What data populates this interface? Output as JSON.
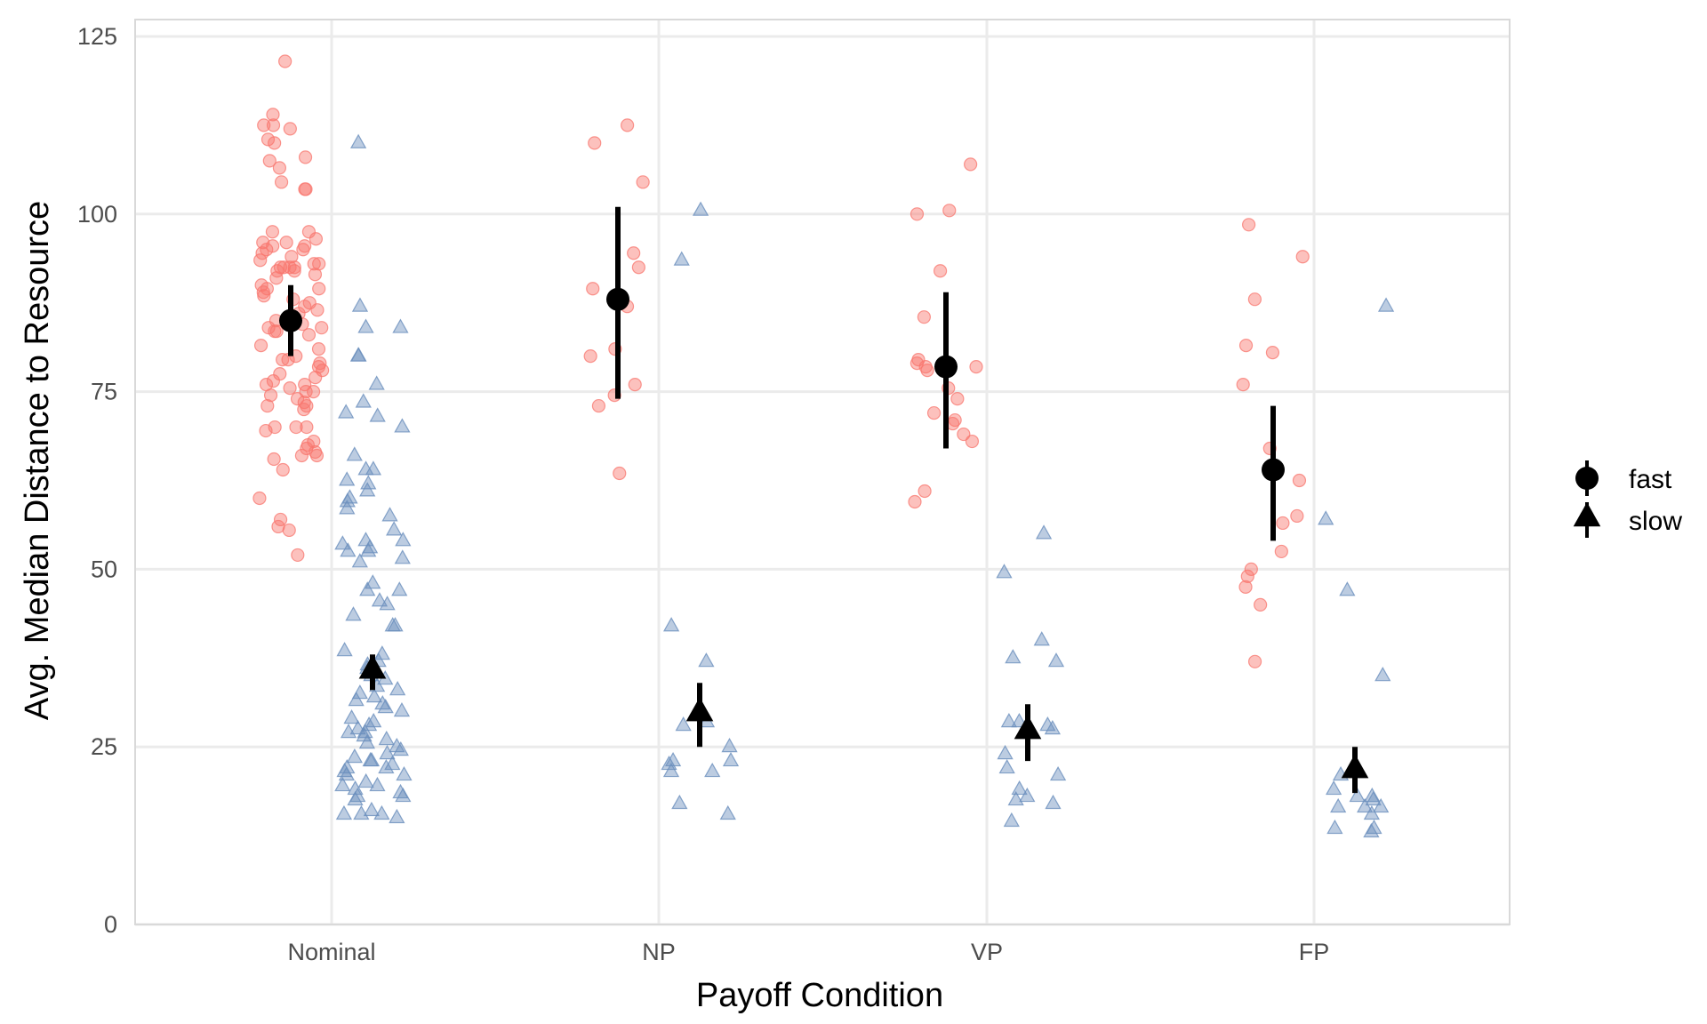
{
  "chart_data": {
    "type": "scatter",
    "title": "",
    "xlabel": "Payoff Condition",
    "ylabel": "Avg. Median Distance to Resource",
    "categories": [
      "Nominal",
      "NP",
      "VP",
      "FP"
    ],
    "ylim": [
      0,
      127
    ],
    "yticks": [
      0,
      25,
      50,
      75,
      100,
      125
    ],
    "grid": true,
    "legend_position": "right",
    "colors": {
      "fast": "#f8766d",
      "slow": "#6a8fbd",
      "summary": "#000000",
      "grid": "#ebebeb"
    },
    "series": [
      {
        "name": "fast",
        "marker": "circle",
        "raw_points": [
          {
            "category": "Nominal",
            "values": [
              121.5,
              114,
              112.5,
              112.5,
              112,
              110.5,
              110,
              108,
              107.5,
              106.5,
              104.5,
              103.5,
              103.5,
              97.5,
              97.5,
              96.5,
              96,
              96,
              95.5,
              95.5,
              95,
              95,
              94.5,
              94,
              93.5,
              93,
              93,
              92.5,
              92.5,
              92.5,
              92.5,
              92,
              92,
              91.5,
              91,
              90,
              89.5,
              89.5,
              89,
              88.5,
              88,
              87.5,
              87,
              86.5,
              86,
              85,
              84.5,
              84,
              84,
              83.5,
              83.5,
              83,
              81.5,
              81,
              80,
              79.5,
              79.5,
              79,
              78.5,
              78,
              77.5,
              77,
              76.5,
              76,
              76,
              75.5,
              75,
              75,
              74.5,
              74,
              73.5,
              73,
              73,
              72.5,
              70,
              70,
              70,
              69.5,
              68,
              67.5,
              67,
              66.5,
              66,
              66,
              65.5,
              64,
              60,
              57,
              56,
              55.5,
              52
            ]
          },
          {
            "category": "NP",
            "values": [
              112.5,
              110,
              104.5,
              94.5,
              92.5,
              89.5,
              87,
              81,
              80,
              76,
              74.5,
              73,
              63.5
            ]
          },
          {
            "category": "VP",
            "values": [
              107,
              100,
              100.5,
              92,
              85.5,
              79.5,
              79,
              78.5,
              78.5,
              78,
              75.5,
              74,
              72,
              71,
              70.5,
              69,
              68,
              61,
              59.5
            ]
          },
          {
            "category": "FP",
            "values": [
              98.5,
              94,
              88,
              81.5,
              80.5,
              76,
              67,
              62.5,
              57.5,
              56.5,
              52.5,
              50,
              49,
              47.5,
              45,
              37
            ]
          }
        ],
        "summary": [
          {
            "category": "Nominal",
            "mean": 85,
            "ci_low": 80,
            "ci_high": 90
          },
          {
            "category": "NP",
            "mean": 88,
            "ci_low": 74,
            "ci_high": 101
          },
          {
            "category": "VP",
            "mean": 78.5,
            "ci_low": 67,
            "ci_high": 89
          },
          {
            "category": "FP",
            "mean": 64,
            "ci_low": 54,
            "ci_high": 73
          }
        ]
      },
      {
        "name": "slow",
        "marker": "triangle",
        "raw_points": [
          {
            "category": "Nominal",
            "values": [
              110,
              87,
              84,
              84,
              80,
              80,
              76,
              73.5,
              72,
              71.5,
              70,
              66,
              64,
              64,
              62.5,
              62,
              61,
              60,
              59.5,
              58.5,
              57.5,
              55.5,
              54,
              54,
              53.5,
              53,
              52.5,
              52.5,
              51.5,
              51,
              48,
              47,
              47,
              45.5,
              45,
              43.5,
              42,
              42,
              38.5,
              38,
              37,
              36.5,
              36,
              35,
              34.5,
              33.5,
              33,
              32.5,
              32,
              31.5,
              31,
              30.5,
              30,
              29,
              28.5,
              28,
              27.5,
              27,
              27,
              26.5,
              26,
              25.5,
              25,
              24.5,
              24,
              23.5,
              23,
              23,
              22.5,
              22,
              22,
              21.5,
              21,
              21,
              20,
              19.5,
              19.5,
              19,
              18.5,
              18,
              18,
              17.5,
              16,
              15.5,
              15.5,
              15.5,
              15
            ]
          },
          {
            "category": "NP",
            "values": [
              100.5,
              93.5,
              42,
              37,
              28.5,
              28,
              25,
              23,
              23,
              22.5,
              21.5,
              21.5,
              17,
              15.5
            ]
          },
          {
            "category": "VP",
            "values": [
              55,
              49.5,
              40,
              37.5,
              37,
              28.5,
              28.5,
              28,
              27.5,
              27,
              24,
              22,
              21,
              19,
              18,
              17.5,
              17,
              14.5
            ]
          },
          {
            "category": "FP",
            "values": [
              87,
              57,
              47,
              35,
              21,
              19,
              18,
              18,
              17.5,
              16.5,
              16.5,
              16.5,
              15.5,
              13.5,
              13.5,
              13
            ]
          }
        ],
        "summary": [
          {
            "category": "Nominal",
            "mean": 35.5,
            "ci_low": 33,
            "ci_high": 38
          },
          {
            "category": "NP",
            "mean": 29.5,
            "ci_low": 25,
            "ci_high": 34
          },
          {
            "category": "VP",
            "mean": 27,
            "ci_low": 23,
            "ci_high": 31
          },
          {
            "category": "FP",
            "mean": 21.5,
            "ci_low": 18.5,
            "ci_high": 25
          }
        ]
      }
    ],
    "legend": [
      {
        "name": "fast",
        "marker": "circle",
        "label": "fast"
      },
      {
        "name": "slow",
        "marker": "triangle",
        "label": "slow"
      }
    ]
  }
}
